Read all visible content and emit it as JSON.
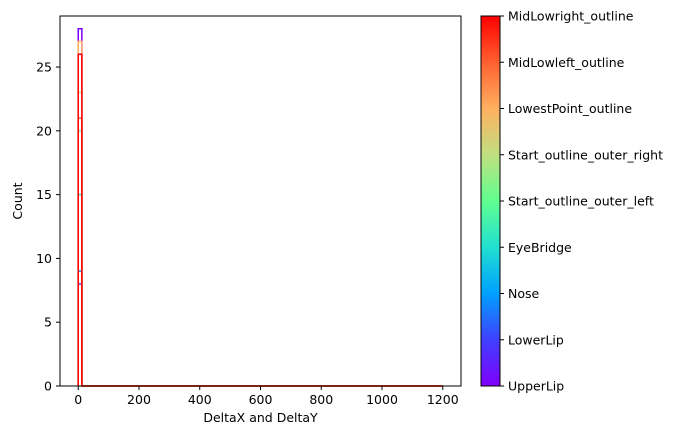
{
  "chart_data": {
    "type": "bar",
    "chart_kind": "overlaid step histograms",
    "title": "",
    "xlabel": "DeltaX and DeltaY",
    "ylabel": "Count",
    "xlim": [
      -60,
      1260
    ],
    "ylim": [
      0,
      29
    ],
    "x_ticks": [
      0,
      200,
      400,
      600,
      800,
      1000,
      1200
    ],
    "y_ticks": [
      0,
      5,
      10,
      15,
      20,
      25
    ],
    "bin_range": [
      0,
      1200
    ],
    "bins": 100,
    "grid": false,
    "colorbar": {
      "colormap": "rainbow",
      "labels": [
        "UpperLip",
        "LowerLip",
        "Nose",
        "EyeBridge",
        "Start_outline_outer_left",
        "Start_outline_outer_right",
        "LowestPoint_outline",
        "MidLowleft_outline",
        "MidLowright_outline"
      ]
    },
    "series": [
      {
        "name": "UpperLip",
        "color": "#8000ff",
        "first_bin_count": 28
      },
      {
        "name": "LowerLip",
        "color": "#4040ff",
        "first_bin_count": 8
      },
      {
        "name": "Nose",
        "color": "#00a0ff",
        "first_bin_count": 9
      },
      {
        "name": "EyeBridge",
        "color": "#20e0d0",
        "first_bin_count": 15
      },
      {
        "name": "Start_outline_outer_left",
        "color": "#60ff90",
        "first_bin_count": 20
      },
      {
        "name": "Start_outline_outer_right",
        "color": "#c0e080",
        "first_bin_count": 23
      },
      {
        "name": "LowestPoint_outline",
        "color": "#ffb060",
        "first_bin_count": 27
      },
      {
        "name": "MidLowleft_outline",
        "color": "#ff6030",
        "first_bin_count": 21
      },
      {
        "name": "MidLowright_outline",
        "color": "#ff0000",
        "first_bin_count": 26
      }
    ]
  }
}
